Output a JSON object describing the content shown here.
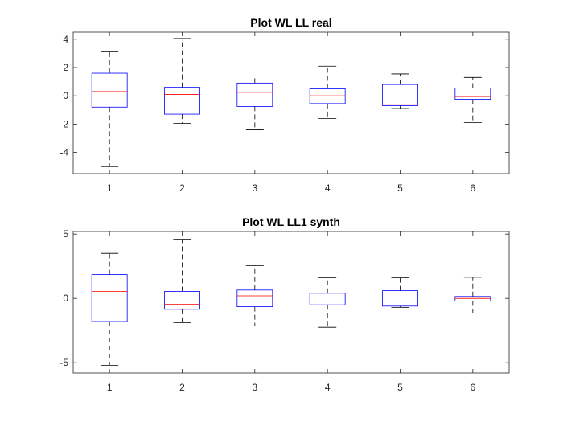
{
  "chart_data": [
    {
      "type": "boxplot",
      "title": "Plot WL LL real",
      "xlabel": "",
      "ylabel": "",
      "categories": [
        "1",
        "2",
        "3",
        "4",
        "5",
        "6"
      ],
      "ylim": [
        -5.5,
        4.5
      ],
      "yticks": [
        -4,
        -2,
        0,
        2,
        4
      ],
      "ytick_labels": [
        "-4",
        "-2",
        "0",
        "2",
        "4"
      ],
      "grid": false,
      "colors": {
        "box": "#0000ff",
        "median": "#ff0000",
        "whisker": "#000000"
      },
      "boxes": [
        {
          "whisker_low": -5.0,
          "q1": -0.8,
          "median": 0.3,
          "q3": 1.6,
          "whisker_high": 3.1
        },
        {
          "whisker_low": -1.95,
          "q1": -1.3,
          "median": 0.1,
          "q3": 0.6,
          "whisker_high": 4.05
        },
        {
          "whisker_low": -2.4,
          "q1": -0.75,
          "median": 0.25,
          "q3": 0.9,
          "whisker_high": 1.4
        },
        {
          "whisker_low": -1.6,
          "q1": -0.55,
          "median": 0.0,
          "q3": 0.5,
          "whisker_high": 2.1
        },
        {
          "whisker_low": -0.9,
          "q1": -0.7,
          "median": -0.6,
          "q3": 0.8,
          "whisker_high": 1.55
        },
        {
          "whisker_low": -1.9,
          "q1": -0.25,
          "median": -0.05,
          "q3": 0.55,
          "whisker_high": 1.3
        }
      ]
    },
    {
      "type": "boxplot",
      "title": "Plot WL LL1 synth",
      "xlabel": "",
      "ylabel": "",
      "categories": [
        "1",
        "2",
        "3",
        "4",
        "5",
        "6"
      ],
      "ylim": [
        -5.8,
        5.2
      ],
      "yticks": [
        -5,
        0,
        5
      ],
      "ytick_labels": [
        "-5",
        "0",
        "5"
      ],
      "grid": false,
      "colors": {
        "box": "#0000ff",
        "median": "#ff0000",
        "whisker": "#000000"
      },
      "boxes": [
        {
          "whisker_low": -5.2,
          "q1": -1.8,
          "median": 0.55,
          "q3": 1.85,
          "whisker_high": 3.5
        },
        {
          "whisker_low": -1.9,
          "q1": -0.85,
          "median": -0.45,
          "q3": 0.55,
          "whisker_high": 4.6
        },
        {
          "whisker_low": -2.15,
          "q1": -0.65,
          "median": 0.2,
          "q3": 0.65,
          "whisker_high": 2.55
        },
        {
          "whisker_low": -2.25,
          "q1": -0.5,
          "median": 0.1,
          "q3": 0.4,
          "whisker_high": 1.6
        },
        {
          "whisker_low": -0.7,
          "q1": -0.6,
          "median": -0.2,
          "q3": 0.6,
          "whisker_high": 1.6
        },
        {
          "whisker_low": -1.15,
          "q1": -0.2,
          "median": 0.0,
          "q3": 0.15,
          "whisker_high": 1.65
        }
      ]
    }
  ]
}
